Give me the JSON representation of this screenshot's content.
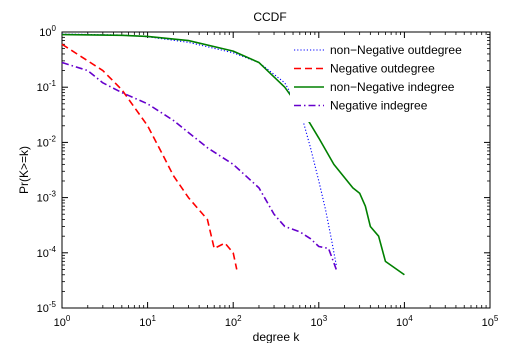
{
  "chart_data": {
    "type": "line",
    "title": "CCDF",
    "xlabel": "degree k",
    "ylabel": "Pr(K>=k)",
    "xscale": "log",
    "yscale": "log",
    "xlim": [
      1,
      100000
    ],
    "ylim": [
      1e-05,
      1
    ],
    "x_ticks": [
      {
        "base": "10",
        "exp": "0",
        "value": 1
      },
      {
        "base": "10",
        "exp": "1",
        "value": 10
      },
      {
        "base": "10",
        "exp": "2",
        "value": 100
      },
      {
        "base": "10",
        "exp": "3",
        "value": 1000
      },
      {
        "base": "10",
        "exp": "4",
        "value": 10000
      },
      {
        "base": "10",
        "exp": "5",
        "value": 100000
      }
    ],
    "y_ticks": [
      {
        "base": "10",
        "exp": "-5",
        "value": 1e-05
      },
      {
        "base": "10",
        "exp": "-4",
        "value": 0.0001
      },
      {
        "base": "10",
        "exp": "-3",
        "value": 0.001
      },
      {
        "base": "10",
        "exp": "-2",
        "value": 0.01
      },
      {
        "base": "10",
        "exp": "-1",
        "value": 0.1
      },
      {
        "base": "10",
        "exp": "0",
        "value": 1
      }
    ],
    "grid": false,
    "legend_position": "top-right",
    "series": [
      {
        "name": "non−Negative outdegree",
        "color": "#0000ff",
        "style": "dotted",
        "points": [
          [
            1,
            0.92
          ],
          [
            5,
            0.88
          ],
          [
            10,
            0.82
          ],
          [
            30,
            0.65
          ],
          [
            100,
            0.42
          ],
          [
            200,
            0.28
          ],
          [
            400,
            0.12
          ],
          [
            600,
            0.04
          ],
          [
            800,
            0.008
          ],
          [
            1000,
            0.002
          ],
          [
            1200,
            0.0006
          ],
          [
            1400,
            0.00018
          ],
          [
            1600,
            6e-05
          ]
        ]
      },
      {
        "name": "Negative outdegree",
        "color": "#ff0000",
        "style": "dashed",
        "points": [
          [
            1,
            0.6
          ],
          [
            2,
            0.3
          ],
          [
            3,
            0.2
          ],
          [
            5,
            0.09
          ],
          [
            10,
            0.02
          ],
          [
            15,
            0.006
          ],
          [
            20,
            0.0025
          ],
          [
            30,
            0.001
          ],
          [
            50,
            0.0004
          ],
          [
            60,
            0.00012
          ],
          [
            80,
            0.00015
          ],
          [
            100,
            0.0001
          ],
          [
            110,
            5e-05
          ]
        ]
      },
      {
        "name": "non−Negative indegree",
        "color": "#008000",
        "style": "solid",
        "points": [
          [
            1,
            0.9
          ],
          [
            5,
            0.87
          ],
          [
            10,
            0.83
          ],
          [
            30,
            0.7
          ],
          [
            100,
            0.45
          ],
          [
            200,
            0.28
          ],
          [
            400,
            0.1
          ],
          [
            700,
            0.03
          ],
          [
            1000,
            0.012
          ],
          [
            1500,
            0.004
          ],
          [
            2500,
            0.0015
          ],
          [
            3000,
            0.0012
          ],
          [
            3500,
            0.0007
          ],
          [
            4000,
            0.0003
          ],
          [
            5000,
            0.0002
          ],
          [
            6000,
            7e-05
          ],
          [
            10000,
            4e-05
          ]
        ]
      },
      {
        "name": "Negative indegree",
        "color": "#6600cc",
        "style": "dashdot",
        "points": [
          [
            1,
            0.28
          ],
          [
            2,
            0.2
          ],
          [
            3,
            0.12
          ],
          [
            5,
            0.08
          ],
          [
            10,
            0.05
          ],
          [
            20,
            0.025
          ],
          [
            50,
            0.008
          ],
          [
            100,
            0.004
          ],
          [
            200,
            0.0015
          ],
          [
            300,
            0.0005
          ],
          [
            400,
            0.0003
          ],
          [
            600,
            0.00024
          ],
          [
            800,
            0.00018
          ],
          [
            1000,
            0.00013
          ],
          [
            1300,
            0.00012
          ],
          [
            1600,
            5e-05
          ]
        ]
      }
    ]
  }
}
